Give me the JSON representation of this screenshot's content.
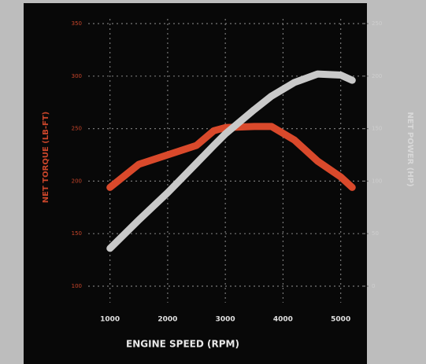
{
  "chart_data": {
    "type": "line",
    "xlabel": "ENGINE SPEED (RPM)",
    "ylabel": "NET TORQUE (LB-FT)",
    "y2label": "NET POWER (HP)",
    "x": [
      1000,
      1500,
      2000,
      2500,
      2800,
      3000,
      3500,
      3800,
      4200,
      4600,
      5000,
      5200
    ],
    "series": [
      {
        "color": "#d9492b",
        "values": [
          194,
          216,
          225,
          234,
          248,
          251,
          252,
          252,
          239,
          219,
          204,
          194
        ]
      },
      {
        "color": "#c9c9c9",
        "axis": "y2",
        "values": [
          36,
          63,
          89,
          117,
          134,
          145,
          168,
          181,
          194,
          202,
          201,
          196
        ]
      }
    ],
    "xlim": [
      800,
      5400
    ],
    "xticks": [
      1000,
      2000,
      3000,
      4000,
      5000
    ],
    "ylim": [
      100,
      350
    ],
    "yticks": [
      100,
      150,
      200,
      250,
      300,
      350
    ],
    "y2lim": [
      0,
      250
    ],
    "y2ticks": [
      0,
      50,
      100,
      150,
      200,
      250
    ],
    "grid": true
  }
}
